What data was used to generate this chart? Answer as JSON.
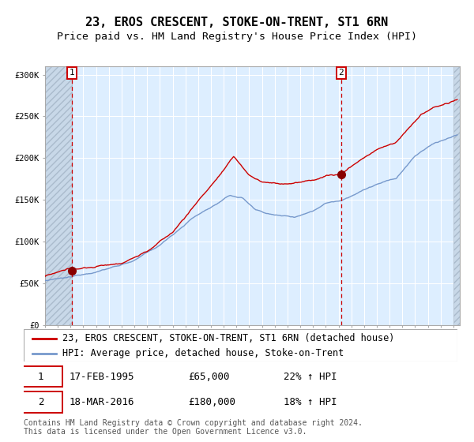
{
  "title": "23, EROS CRESCENT, STOKE-ON-TRENT, ST1 6RN",
  "subtitle": "Price paid vs. HM Land Registry's House Price Index (HPI)",
  "xlim_start": 1993.0,
  "xlim_end": 2025.5,
  "ylim": [
    0,
    310000
  ],
  "yticks": [
    0,
    50000,
    100000,
    150000,
    200000,
    250000,
    300000
  ],
  "ytick_labels": [
    "£0",
    "£50K",
    "£100K",
    "£150K",
    "£200K",
    "£250K",
    "£300K"
  ],
  "red_line_color": "#cc0000",
  "blue_line_color": "#7799cc",
  "marker_color": "#880000",
  "vline_color": "#cc0000",
  "bg_color": "#ddeeff",
  "hatch_color": "#c8d8e8",
  "grid_color": "#ffffff",
  "purchase1_year": 1995.12,
  "purchase1_price": 65000,
  "purchase2_year": 2016.21,
  "purchase2_price": 180000,
  "legend_label_red": "23, EROS CRESCENT, STOKE-ON-TRENT, ST1 6RN (detached house)",
  "legend_label_blue": "HPI: Average price, detached house, Stoke-on-Trent",
  "annotation1_date": "17-FEB-1995",
  "annotation1_price": "£65,000",
  "annotation1_hpi": "22% ↑ HPI",
  "annotation2_date": "18-MAR-2016",
  "annotation2_price": "£180,000",
  "annotation2_hpi": "18% ↑ HPI",
  "footer": "Contains HM Land Registry data © Crown copyright and database right 2024.\nThis data is licensed under the Open Government Licence v3.0.",
  "title_fontsize": 11,
  "subtitle_fontsize": 9.5,
  "tick_fontsize": 7.5,
  "legend_fontsize": 8.5,
  "annotation_fontsize": 9
}
